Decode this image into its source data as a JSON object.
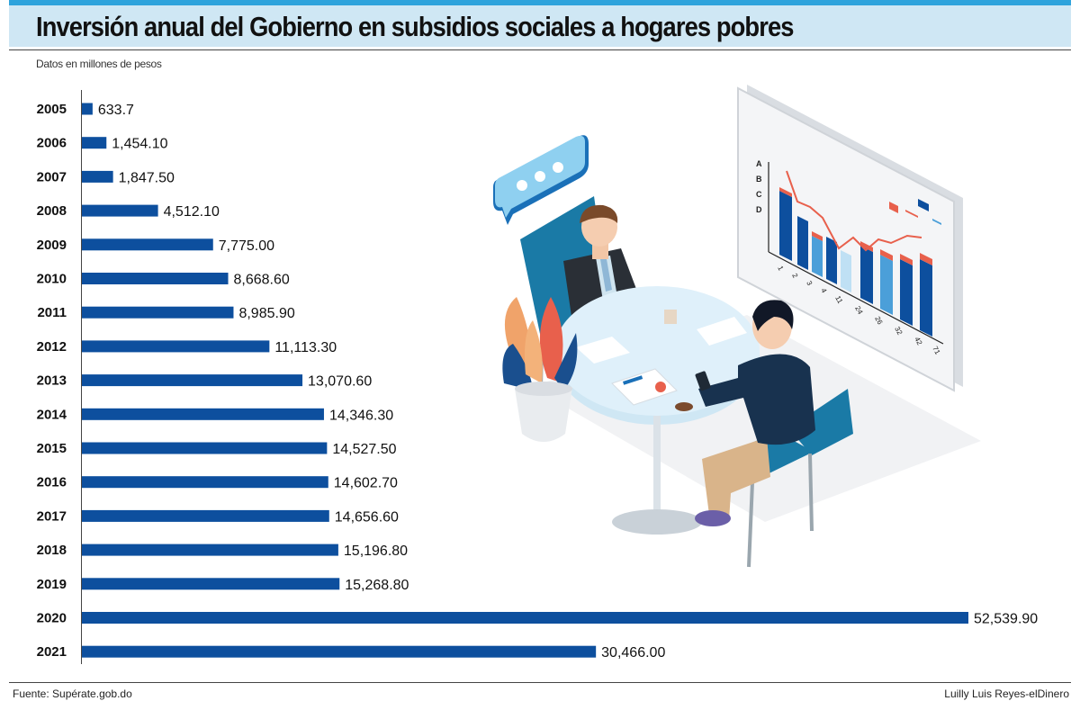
{
  "header": {
    "title": "Inversión anual del Gobierno en subsidios sociales a hogares pobres",
    "subtitle": "Datos en millones de pesos"
  },
  "footer": {
    "source": "Fuente: Supérate.gob.do",
    "credit": "Luilly Luis Reyes-elDinero"
  },
  "colors": {
    "bar": "#0d4f9e",
    "title_band": "#cfe7f4",
    "title_band_top": "#2ea3dc"
  },
  "illustration": {
    "icon": "business-meeting-illustration",
    "board_axis_letters": [
      "A",
      "B",
      "C",
      "D"
    ],
    "board_x_labels": [
      "1",
      "2",
      "3",
      "4",
      "11",
      "24",
      "26",
      "32",
      "42",
      "71"
    ]
  },
  "chart_data": {
    "type": "bar",
    "orientation": "horizontal",
    "categories": [
      "2005",
      "2006",
      "2007",
      "2008",
      "2009",
      "2010",
      "2011",
      "2012",
      "2013",
      "2014",
      "2015",
      "2016",
      "2017",
      "2018",
      "2019",
      "2020",
      "2021"
    ],
    "values": [
      633.7,
      1454.1,
      1847.5,
      4512.1,
      7775.0,
      8668.6,
      8985.9,
      11113.3,
      13070.6,
      14346.3,
      14527.5,
      14602.7,
      14656.6,
      15196.8,
      15268.8,
      52539.9,
      30466.0
    ],
    "value_labels": [
      "633.7",
      "1,454.10",
      "1,847.50",
      "4,512.10",
      "7,775.00",
      "8,668.60",
      "8,985.90",
      "11,113.30",
      "13,070.60",
      "14,346.30",
      "14,527.50",
      "14,602.70",
      "14,656.60",
      "15,196.80",
      "15,268.80",
      "52,539.90",
      "30,466.00"
    ],
    "title": "Inversión anual del Gobierno en subsidios sociales a hogares pobres",
    "xlabel": "",
    "ylabel": "",
    "xlim": [
      0,
      52539.9
    ],
    "grid": false,
    "legend": "none"
  }
}
